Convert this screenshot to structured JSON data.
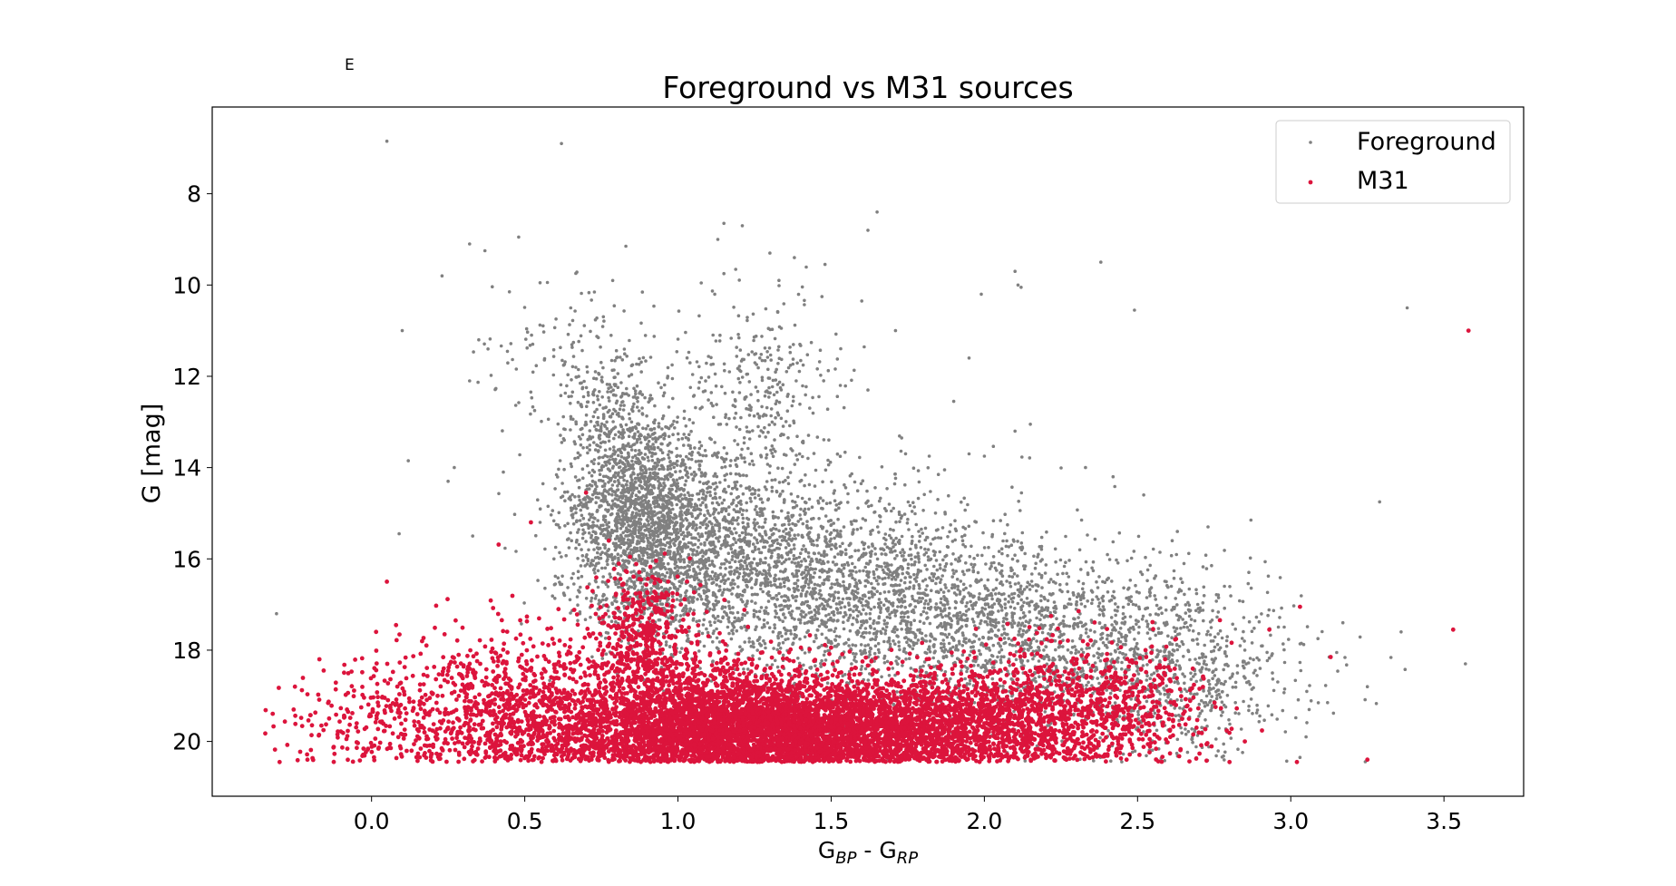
{
  "corner_mark": "E",
  "chart_data": {
    "type": "scatter",
    "title": "Foreground vs M31 sources",
    "xlabel": {
      "base": "G",
      "sub1": "BP",
      "mid": " - G",
      "sub2": "RP"
    },
    "ylabel": "G [mag]",
    "xlim": [
      -0.52,
      3.76
    ],
    "ylim": [
      21.2,
      6.1
    ],
    "y_inverted": true,
    "grid": false,
    "legend_position": "top-right",
    "xticks": [
      {
        "value": 0.0,
        "label": "0.0"
      },
      {
        "value": 0.5,
        "label": "0.5"
      },
      {
        "value": 1.0,
        "label": "1.0"
      },
      {
        "value": 1.5,
        "label": "1.5"
      },
      {
        "value": 2.0,
        "label": "2.0"
      },
      {
        "value": 2.5,
        "label": "2.5"
      },
      {
        "value": 3.0,
        "label": "3.0"
      },
      {
        "value": 3.5,
        "label": "3.5"
      }
    ],
    "yticks": [
      {
        "value": 8,
        "label": "8"
      },
      {
        "value": 10,
        "label": "10"
      },
      {
        "value": 12,
        "label": "12"
      },
      {
        "value": 14,
        "label": "14"
      },
      {
        "value": 16,
        "label": "16"
      },
      {
        "value": 18,
        "label": "18"
      },
      {
        "value": 20,
        "label": "20"
      }
    ],
    "series": [
      {
        "name": "Foreground",
        "color": "#808080",
        "points": [
          [
            0.05,
            6.85
          ],
          [
            0.62,
            6.9
          ],
          [
            1.65,
            8.4
          ],
          [
            1.62,
            8.8
          ],
          [
            1.15,
            8.65
          ],
          [
            1.21,
            8.7
          ],
          [
            1.13,
            9.0
          ],
          [
            0.32,
            9.1
          ],
          [
            0.37,
            9.25
          ],
          [
            0.48,
            8.95
          ],
          [
            0.83,
            9.15
          ],
          [
            1.3,
            9.3
          ],
          [
            1.38,
            9.4
          ],
          [
            1.48,
            9.55
          ],
          [
            2.38,
            9.5
          ],
          [
            2.1,
            9.7
          ],
          [
            0.23,
            9.8
          ],
          [
            1.15,
            9.75
          ],
          [
            1.12,
            10.2
          ],
          [
            1.6,
            10.35
          ],
          [
            1.99,
            10.2
          ],
          [
            2.11,
            10.0
          ],
          [
            2.12,
            10.05
          ],
          [
            0.45,
            10.15
          ],
          [
            0.55,
            9.95
          ],
          [
            0.65,
            10.5
          ],
          [
            2.49,
            10.55
          ],
          [
            3.38,
            10.5
          ],
          [
            0.1,
            11.0
          ],
          [
            0.35,
            11.2
          ],
          [
            0.38,
            11.4
          ],
          [
            0.32,
            12.1
          ],
          [
            0.12,
            13.85
          ],
          [
            0.25,
            14.3
          ],
          [
            0.27,
            14.0
          ],
          [
            0.43,
            14.1
          ],
          [
            0.09,
            15.45
          ],
          [
            0.33,
            15.5
          ],
          [
            0.55,
            15.2
          ],
          [
            1.71,
            11.0
          ],
          [
            1.95,
            11.6
          ],
          [
            1.62,
            12.3
          ],
          [
            1.53,
            12.2
          ],
          [
            1.9,
            12.55
          ],
          [
            2.1,
            13.2
          ],
          [
            2.15,
            13.05
          ],
          [
            1.73,
            13.35
          ],
          [
            1.82,
            13.75
          ],
          [
            1.95,
            13.7
          ],
          [
            2.0,
            13.75
          ],
          [
            2.33,
            14.0
          ],
          [
            2.42,
            14.2
          ],
          [
            2.52,
            14.6
          ],
          [
            1.87,
            14.05
          ],
          [
            1.85,
            14.15
          ],
          [
            3.29,
            14.75
          ],
          [
            2.63,
            15.4
          ],
          [
            2.73,
            15.3
          ],
          [
            2.87,
            15.15
          ],
          [
            3.36,
            17.6
          ],
          [
            3.57,
            18.3
          ],
          [
            3.25,
            18.8
          ],
          [
            3.15,
            18.05
          ],
          [
            3.17,
            17.4
          ],
          [
            3.12,
            19.15
          ],
          [
            3.06,
            19.3
          ],
          [
            3.05,
            19.9
          ],
          [
            3.03,
            20.35
          ],
          [
            2.98,
            18.27
          ],
          [
            3.03,
            18.27
          ],
          [
            2.97,
            17.08
          ],
          [
            3.01,
            17.03
          ],
          [
            2.89,
            18.17
          ],
          [
            2.9,
            18.4
          ],
          [
            2.85,
            18.0
          ],
          [
            -0.31,
            17.2
          ],
          [
            0.6,
            16.55
          ],
          [
            0.63,
            16.8
          ],
          [
            0.68,
            17.2
          ]
        ],
        "blobs": [
          {
            "cx": 0.88,
            "cy": 15.2,
            "sx": 0.11,
            "sy": 1.2,
            "n": 1800
          },
          {
            "cx": 0.78,
            "cy": 12.8,
            "sx": 0.08,
            "sy": 1.0,
            "n": 300
          },
          {
            "cx": 1.27,
            "cy": 12.2,
            "sx": 0.13,
            "sy": 1.0,
            "n": 280
          },
          {
            "cx": 1.15,
            "cy": 15.6,
            "sx": 0.22,
            "sy": 1.1,
            "n": 1200
          },
          {
            "cx": 1.55,
            "cy": 16.5,
            "sx": 0.3,
            "sy": 1.0,
            "n": 1400
          },
          {
            "cx": 2.05,
            "cy": 17.5,
            "sx": 0.38,
            "sy": 0.9,
            "n": 1300
          },
          {
            "cx": 2.45,
            "cy": 18.5,
            "sx": 0.28,
            "sy": 1.0,
            "n": 700
          },
          {
            "cx": 2.7,
            "cy": 18.9,
            "sx": 0.14,
            "sy": 0.8,
            "n": 200
          },
          {
            "cx": 0.55,
            "cy": 11.5,
            "sx": 0.1,
            "sy": 0.8,
            "n": 60
          }
        ]
      },
      {
        "name": "M31",
        "color": "#dc143c",
        "points": [
          [
            3.58,
            11.0
          ],
          [
            3.53,
            17.55
          ],
          [
            3.25,
            20.4
          ],
          [
            3.02,
            20.45
          ],
          [
            3.03,
            17.05
          ],
          [
            3.13,
            18.15
          ],
          [
            2.93,
            17.55
          ],
          [
            2.8,
            20.45
          ],
          [
            2.85,
            20.0
          ],
          [
            0.7,
            14.55
          ],
          [
            0.52,
            15.2
          ],
          [
            -0.3,
            20.45
          ],
          [
            -0.25,
            18.8
          ],
          [
            -0.17,
            18.2
          ],
          [
            0.08,
            17.45
          ],
          [
            0.05,
            16.5
          ]
        ],
        "blobs": [
          {
            "cx": 1.1,
            "cy": 19.7,
            "sx": 0.28,
            "sy": 0.65,
            "n": 4200
          },
          {
            "cx": 1.6,
            "cy": 19.8,
            "sx": 0.3,
            "sy": 0.55,
            "n": 2600
          },
          {
            "cx": 2.05,
            "cy": 19.5,
            "sx": 0.25,
            "sy": 0.65,
            "n": 1100
          },
          {
            "cx": 2.4,
            "cy": 19.2,
            "sx": 0.18,
            "sy": 0.7,
            "n": 450
          },
          {
            "cx": 0.45,
            "cy": 19.4,
            "sx": 0.2,
            "sy": 0.9,
            "n": 900
          },
          {
            "cx": 0.05,
            "cy": 19.6,
            "sx": 0.18,
            "sy": 0.8,
            "n": 260
          },
          {
            "cx": 0.88,
            "cy": 17.8,
            "sx": 0.09,
            "sy": 0.8,
            "n": 500
          }
        ]
      }
    ]
  }
}
